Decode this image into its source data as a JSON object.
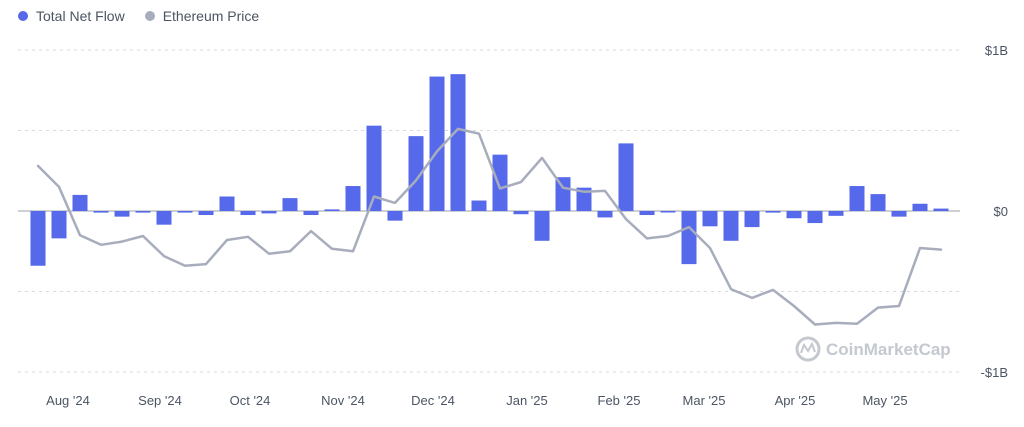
{
  "legend": {
    "net_flow_label": "Total Net Flow",
    "price_label": "Ethereum Price"
  },
  "watermark": "CoinMarketCap",
  "colors": {
    "bar": "#5569ea",
    "line": "#a7adbc",
    "grid": "#d6d9df",
    "zero_line": "#9aa0aa"
  },
  "chart_data": {
    "type": "bar",
    "x_tick_labels": [
      "Aug '24",
      "Sep '24",
      "Oct '24",
      "Nov '24",
      "Dec '24",
      "Jan '25",
      "Feb '25",
      "Mar '25",
      "Apr '25",
      "May '25"
    ],
    "y_tick_labels": [
      "$1B",
      "$0",
      "-$1B"
    ],
    "ylim": [
      -1000,
      1000
    ],
    "y_unit": "$M",
    "grid": true,
    "legend_position": "top-left",
    "series": [
      {
        "name": "Total Net Flow",
        "kind": "bar",
        "values": [
          -340,
          -170,
          100,
          -10,
          -35,
          -10,
          -85,
          -10,
          -25,
          90,
          -25,
          -15,
          80,
          -25,
          10,
          155,
          530,
          -60,
          465,
          835,
          850,
          65,
          350,
          -20,
          -185,
          210,
          145,
          -40,
          420,
          -25,
          -5,
          -330,
          -95,
          -185,
          -100,
          -10,
          -45,
          -75,
          -30,
          155,
          105,
          -35,
          45,
          15
        ]
      },
      {
        "name": "Ethereum Price",
        "kind": "line",
        "axis": "unlabeled",
        "values": [
          280,
          150,
          -150,
          -210,
          -190,
          -155,
          -280,
          -340,
          -330,
          -180,
          -160,
          -265,
          -250,
          -125,
          -235,
          -250,
          90,
          50,
          190,
          370,
          510,
          480,
          140,
          180,
          330,
          145,
          120,
          125,
          -50,
          -170,
          -155,
          -100,
          -230,
          -485,
          -540,
          -490,
          -590,
          -705,
          -695,
          -700,
          -600,
          -590,
          -230,
          -240
        ]
      }
    ]
  }
}
